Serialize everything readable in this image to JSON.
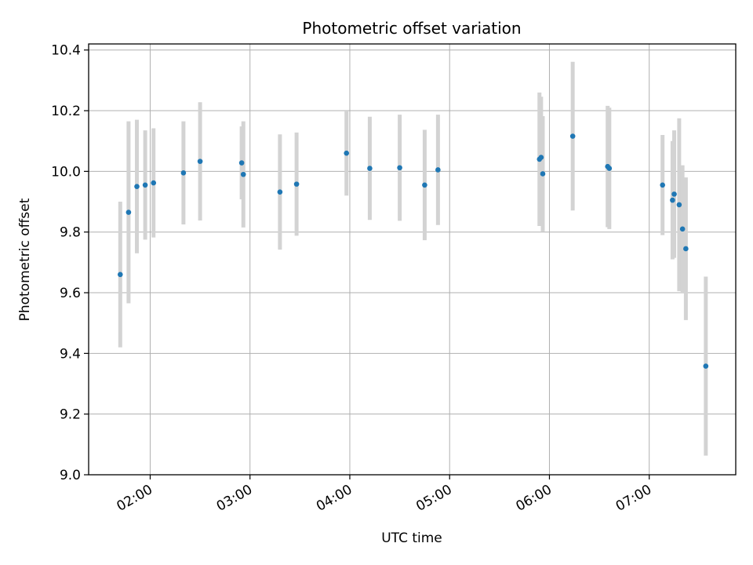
{
  "chart_data": {
    "type": "scatter",
    "title": "Photometric offset variation",
    "xlabel": "UTC time",
    "ylabel": "Photometric offset",
    "xlim": [
      "01:23",
      "07:52"
    ],
    "ylim": [
      9.0,
      10.42
    ],
    "x_ticks": [
      "02:00",
      "03:00",
      "04:00",
      "05:00",
      "06:00",
      "07:00"
    ],
    "y_ticks": [
      "9.0",
      "9.2",
      "9.4",
      "9.6",
      "9.8",
      "10.0",
      "10.2",
      "10.4"
    ],
    "grid": true,
    "marker_color": "#1f77b4",
    "errorbar_color": "#d3d3d3",
    "points": [
      {
        "x": "01:42",
        "y": 9.66,
        "err": 0.24
      },
      {
        "x": "01:47",
        "y": 9.865,
        "err": 0.3
      },
      {
        "x": "01:52",
        "y": 9.95,
        "err": 0.22
      },
      {
        "x": "01:57",
        "y": 9.955,
        "err": 0.18
      },
      {
        "x": "02:02",
        "y": 9.962,
        "err": 0.18
      },
      {
        "x": "02:20",
        "y": 9.995,
        "err": 0.17
      },
      {
        "x": "02:30",
        "y": 10.033,
        "err": 0.195
      },
      {
        "x": "02:55",
        "y": 10.028,
        "err": 0.12
      },
      {
        "x": "02:56",
        "y": 9.99,
        "err": 0.175
      },
      {
        "x": "03:18",
        "y": 9.932,
        "err": 0.19
      },
      {
        "x": "03:28",
        "y": 9.958,
        "err": 0.17
      },
      {
        "x": "03:58",
        "y": 10.06,
        "err": 0.14
      },
      {
        "x": "04:12",
        "y": 10.01,
        "err": 0.17
      },
      {
        "x": "04:30",
        "y": 10.012,
        "err": 0.175
      },
      {
        "x": "04:45",
        "y": 9.955,
        "err": 0.182
      },
      {
        "x": "04:53",
        "y": 10.005,
        "err": 0.182
      },
      {
        "x": "05:54",
        "y": 10.04,
        "err": 0.22
      },
      {
        "x": "05:55",
        "y": 10.046,
        "err": 0.2
      },
      {
        "x": "05:56",
        "y": 9.992,
        "err": 0.19
      },
      {
        "x": "06:14",
        "y": 10.116,
        "err": 0.245
      },
      {
        "x": "06:35",
        "y": 10.016,
        "err": 0.2
      },
      {
        "x": "06:36",
        "y": 10.01,
        "err": 0.2
      },
      {
        "x": "07:08",
        "y": 9.955,
        "err": 0.165
      },
      {
        "x": "07:14",
        "y": 9.905,
        "err": 0.195
      },
      {
        "x": "07:15",
        "y": 9.925,
        "err": 0.21
      },
      {
        "x": "07:18",
        "y": 9.89,
        "err": 0.285
      },
      {
        "x": "07:20",
        "y": 9.81,
        "err": 0.21
      },
      {
        "x": "07:22",
        "y": 9.745,
        "err": 0.235
      },
      {
        "x": "07:34",
        "y": 9.358,
        "err": 0.295
      }
    ]
  }
}
